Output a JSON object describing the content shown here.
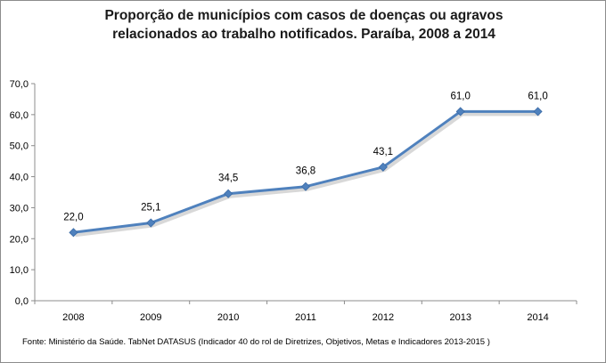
{
  "chart_data": {
    "type": "line",
    "title_lines": [
      "Proporção de municípios com casos de doenças ou agravos",
      "relacionados ao trabalho notificados. Paraíba, 2008 a 2014"
    ],
    "categories": [
      "2008",
      "2009",
      "2010",
      "2011",
      "2012",
      "2013",
      "2014"
    ],
    "series": [
      {
        "name": "Proporção de municípios",
        "values": [
          22.0,
          25.1,
          34.5,
          36.8,
          43.1,
          61.0,
          61.0
        ],
        "data_labels": [
          "22,0",
          "25,1",
          "34,5",
          "36,8",
          "43,1",
          "61,0",
          "61,0"
        ]
      }
    ],
    "y_ticks": [
      "0,0",
      "10,0",
      "20,0",
      "30,0",
      "40,0",
      "50,0",
      "60,0",
      "70,0"
    ],
    "ylim": [
      0,
      70
    ],
    "grid": false,
    "legend": "none",
    "colors": {
      "line": "#4f81bd",
      "marker": "#4f81bd",
      "shadow": "#c8c8c8",
      "axis": "#8c8c8c"
    },
    "source_note": "Fonte: Ministério da Saúde. TabNet DATASUS (Indicador 40  do rol de Diretrizes, Objetivos, Metas e Indicadores 2013-2015 )"
  }
}
